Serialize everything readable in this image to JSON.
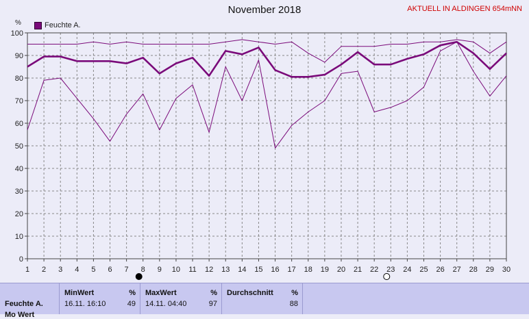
{
  "header": {
    "title": "November 2018",
    "station": "AKTUELL IN ALDINGEN 654mNN",
    "unit": "%",
    "legend": "Feuchte A."
  },
  "colors": {
    "series": "#7a0a7a",
    "grid": "#888888",
    "background": "#ececf8"
  },
  "chart_data": {
    "type": "line",
    "title": "November 2018",
    "ylabel": "%",
    "xlabel": "",
    "ylim": [
      0,
      100
    ],
    "xlim": [
      1,
      30
    ],
    "y_ticks": [
      0,
      10,
      20,
      30,
      40,
      50,
      60,
      70,
      80,
      90,
      100
    ],
    "x": [
      1,
      2,
      3,
      4,
      5,
      6,
      7,
      8,
      9,
      10,
      11,
      12,
      13,
      14,
      15,
      16,
      17,
      18,
      19,
      20,
      21,
      22,
      23,
      24,
      25,
      26,
      27,
      28,
      29,
      30
    ],
    "grid": true,
    "legend_position": "top-left",
    "moon_markers": [
      {
        "day": 8,
        "phase": "new-moon"
      },
      {
        "day": 23,
        "phase": "full-moon"
      }
    ],
    "series": [
      {
        "name": "Feuchte A.",
        "role": "mean",
        "values": [
          85,
          89.5,
          89.5,
          87.5,
          87.5,
          87.5,
          86.5,
          89,
          82,
          86.5,
          89,
          81,
          92,
          90.5,
          93.5,
          83.5,
          80.5,
          80.5,
          81.5,
          86,
          91.5,
          86,
          86,
          88.5,
          90.5,
          94.5,
          96,
          91,
          84,
          91
        ]
      },
      {
        "role": "max",
        "values": [
          95,
          95,
          95,
          95,
          96,
          95,
          96,
          95,
          95,
          95,
          95,
          95,
          96,
          97,
          96,
          95,
          96,
          91,
          87,
          94,
          94,
          94,
          95,
          95,
          96,
          96,
          97,
          96,
          91,
          96
        ]
      },
      {
        "role": "min",
        "values": [
          57,
          79,
          80,
          71,
          62,
          52,
          64,
          73,
          57,
          71,
          77,
          56,
          85,
          70,
          88,
          49,
          59,
          65,
          70,
          82,
          83,
          65,
          67,
          70,
          76,
          92,
          96,
          83,
          72,
          81
        ]
      }
    ]
  },
  "table": {
    "row_label": "Feuchte A.",
    "row_label_2": "Mo Wert",
    "columns": [
      {
        "header": "MinWert",
        "unit": "%",
        "time": "16.11.  16:10",
        "value": "49"
      },
      {
        "header": "MaxWert",
        "unit": "%",
        "time": "14.11.  04:40",
        "value": "97"
      },
      {
        "header": "Durchschnitt",
        "unit": "%",
        "time": "",
        "value": "88"
      }
    ]
  }
}
